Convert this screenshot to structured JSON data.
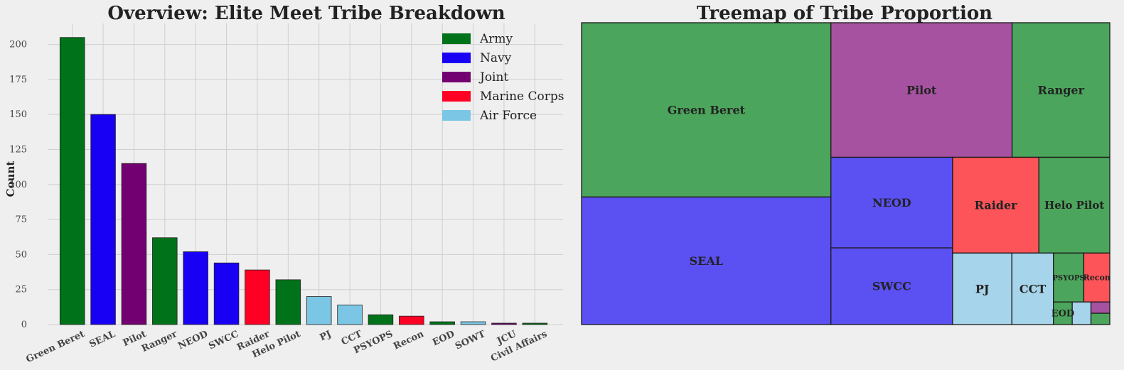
{
  "chart_data": [
    {
      "type": "bar",
      "title": "Overview: Elite Meet Tribe Breakdown",
      "xlabel": "",
      "ylabel": "Count",
      "ylim": [
        0,
        215
      ],
      "yticks": [
        0,
        25,
        50,
        75,
        100,
        125,
        150,
        175,
        200
      ],
      "grid": true,
      "legend_position": "top-right",
      "branch_colors": {
        "Army": "#00721a",
        "Navy": "#1800f5",
        "Joint": "#720070",
        "Marine Corps": "#ff0025",
        "Air Force": "#7ac6e4"
      },
      "legend": [
        "Army",
        "Navy",
        "Joint",
        "Marine Corps",
        "Air Force"
      ],
      "categories": [
        "Green Beret",
        "SEAL",
        "Pilot",
        "Ranger",
        "NEOD",
        "SWCC",
        "Raider",
        "Helo Pilot",
        "PJ",
        "CCT",
        "PSYOPS",
        "Recon",
        "EOD",
        "SOWT",
        "JCU",
        "Civil Affairs"
      ],
      "values": [
        205,
        150,
        115,
        62,
        52,
        44,
        39,
        32,
        20,
        14,
        7,
        6,
        2,
        2,
        1,
        1
      ],
      "branches": [
        "Army",
        "Navy",
        "Joint",
        "Army",
        "Navy",
        "Navy",
        "Marine Corps",
        "Army",
        "Air Force",
        "Air Force",
        "Army",
        "Marine Corps",
        "Army",
        "Air Force",
        "Joint",
        "Army"
      ]
    },
    {
      "type": "treemap",
      "title": "Treemap of Tribe Proportion",
      "branch_colors": {
        "Army": "#4ca55c",
        "Navy": "#5b50f2",
        "Joint": "#a652a0",
        "Marine Corps": "#fd5459",
        "Air Force": "#a6d4ea"
      },
      "labels": [
        "Green Beret",
        "SEAL",
        "Pilot",
        "Ranger",
        "NEOD",
        "SWCC",
        "Raider",
        "Helo Pilot",
        "PJ",
        "CCT",
        "PSYOPS",
        "Recon",
        "EOD",
        "SOWT",
        "JCU",
        "Civil Affairs"
      ],
      "shown_labels": [
        "Green Beret",
        "SEAL",
        "Pilot",
        "Ranger",
        "NEOD",
        "SWCC",
        "Raider",
        "Helo Pilot",
        "PJ",
        "CCT",
        "PSYOPS",
        "Recon",
        "EOD"
      ],
      "values": [
        205,
        150,
        115,
        62,
        52,
        44,
        39,
        32,
        20,
        14,
        7,
        6,
        2,
        2,
        1,
        1
      ],
      "branches": [
        "Army",
        "Navy",
        "Joint",
        "Army",
        "Navy",
        "Navy",
        "Marine Corps",
        "Army",
        "Air Force",
        "Air Force",
        "Army",
        "Marine Corps",
        "Army",
        "Air Force",
        "Joint",
        "Army"
      ]
    }
  ]
}
